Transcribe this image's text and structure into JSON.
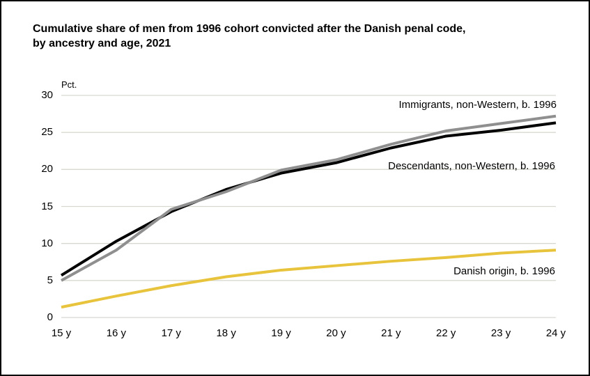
{
  "window": {
    "background": "#ffffff",
    "frame_border_color": "#000000"
  },
  "title": {
    "line1": "Cumulative share of men from 1996 cohort convicted after the Danish penal code,",
    "line2": "by ancestry and age, 2021"
  },
  "chart_data": {
    "type": "line",
    "title": "Cumulative share of men from 1996 cohort convicted after the Danish penal code, by ancestry and age, 2021",
    "unit_label": "Pct.",
    "xlabel": "",
    "ylabel": "Pct.",
    "categories": [
      "15 y",
      "16 y",
      "17 y",
      "18 y",
      "19 y",
      "20 y",
      "21 y",
      "22 y",
      "23 y",
      "24 y"
    ],
    "series": [
      {
        "name": "Immigrants, non-Western, b. 1996",
        "color": "#8F8F8F",
        "values": [
          5.0,
          9.1,
          14.6,
          17.0,
          19.9,
          21.3,
          23.4,
          25.2,
          26.2,
          27.2
        ]
      },
      {
        "name": "Descendants, non-Western, b. 1996",
        "color": "#000000",
        "values": [
          5.7,
          10.3,
          14.3,
          17.3,
          19.5,
          20.9,
          22.9,
          24.5,
          25.3,
          26.3
        ]
      },
      {
        "name": "Danish origin, b. 1996",
        "color": "#E8C33C",
        "values": [
          1.4,
          2.9,
          4.3,
          5.5,
          6.4,
          7.0,
          7.6,
          8.1,
          8.7,
          9.1
        ]
      }
    ],
    "ylim": [
      0,
      30
    ],
    "yticks": [
      0,
      5,
      10,
      15,
      20,
      25,
      30
    ],
    "grid": true,
    "gridline_color": "#D8D8D0",
    "legend_position": "inline-labels-right"
  }
}
